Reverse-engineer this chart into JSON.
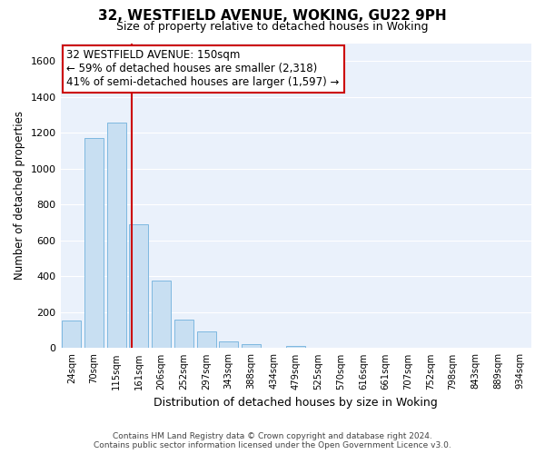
{
  "title": "32, WESTFIELD AVENUE, WOKING, GU22 9PH",
  "subtitle": "Size of property relative to detached houses in Woking",
  "xlabel": "Distribution of detached houses by size in Woking",
  "ylabel": "Number of detached properties",
  "bin_labels": [
    "24sqm",
    "70sqm",
    "115sqm",
    "161sqm",
    "206sqm",
    "252sqm",
    "297sqm",
    "343sqm",
    "388sqm",
    "434sqm",
    "479sqm",
    "525sqm",
    "570sqm",
    "616sqm",
    "661sqm",
    "707sqm",
    "752sqm",
    "798sqm",
    "843sqm",
    "889sqm",
    "934sqm"
  ],
  "bar_values": [
    152,
    1170,
    1258,
    688,
    375,
    160,
    93,
    37,
    22,
    0,
    14,
    0,
    0,
    0,
    0,
    0,
    0,
    0,
    0,
    0,
    0
  ],
  "bar_color": "#c8dff2",
  "bar_edge_color": "#7eb8e0",
  "vline_color": "#cc0000",
  "annotation_text": "32 WESTFIELD AVENUE: 150sqm\n← 59% of detached houses are smaller (2,318)\n41% of semi-detached houses are larger (1,597) →",
  "annotation_box_color": "white",
  "annotation_box_edge": "#cc0000",
  "ylim": [
    0,
    1700
  ],
  "yticks": [
    0,
    200,
    400,
    600,
    800,
    1000,
    1200,
    1400,
    1600
  ],
  "footer_line1": "Contains HM Land Registry data © Crown copyright and database right 2024.",
  "footer_line2": "Contains public sector information licensed under the Open Government Licence v3.0.",
  "bg_color": "#ffffff",
  "plot_bg_color": "#eaf1fb",
  "grid_color": "#ffffff",
  "title_fontsize": 11,
  "subtitle_fontsize": 9,
  "ylabel_fontsize": 8.5,
  "xlabel_fontsize": 9
}
